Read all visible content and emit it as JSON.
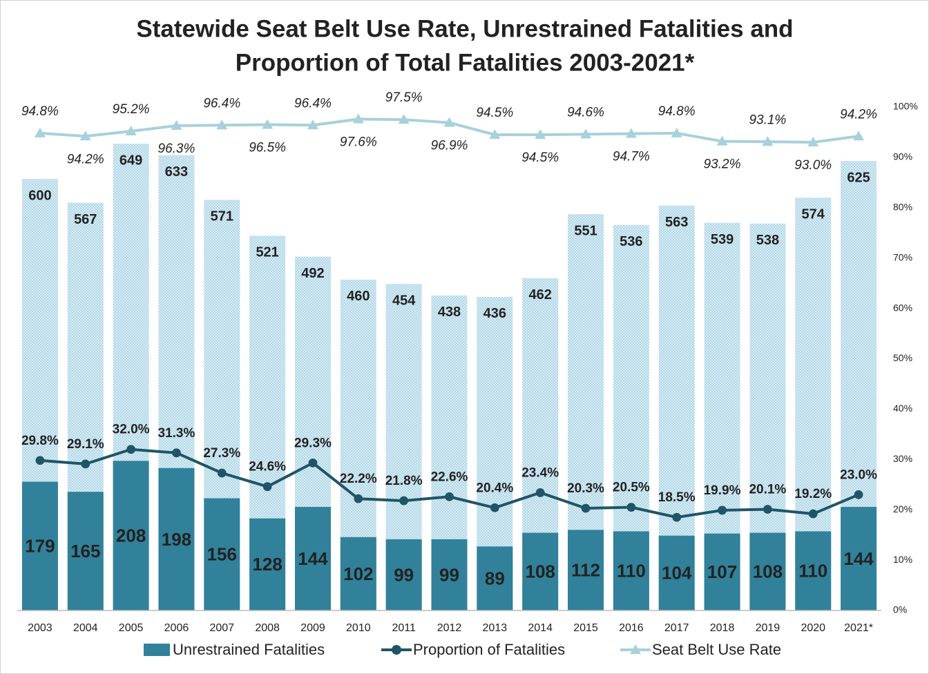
{
  "chart_data": {
    "type": "bar",
    "title": [
      "Statewide Seat Belt Use Rate, Unrestrained Fatalities and",
      "Proportion of Total Fatalities 2003-2021*"
    ],
    "categories": [
      "2003",
      "2004",
      "2005",
      "2006",
      "2007",
      "2008",
      "2009",
      "2010",
      "2011",
      "2012",
      "2013",
      "2014",
      "2015",
      "2016",
      "2017",
      "2018",
      "2019",
      "2020",
      "2021*"
    ],
    "ylim": [
      0,
      700
    ],
    "y2lim": [
      0,
      100
    ],
    "y2ticks": [
      {
        "value": 0,
        "label": "0%"
      },
      {
        "value": 10,
        "label": "10%"
      },
      {
        "value": 20,
        "label": "20%"
      },
      {
        "value": 30,
        "label": "30%"
      },
      {
        "value": 40,
        "label": "40%"
      },
      {
        "value": 50,
        "label": "50%"
      },
      {
        "value": 60,
        "label": "60%"
      },
      {
        "value": 70,
        "label": "70%"
      },
      {
        "value": 80,
        "label": "80%"
      },
      {
        "value": 90,
        "label": "90%"
      },
      {
        "value": 100,
        "label": "100%"
      }
    ],
    "grid": false,
    "legend": "bottom",
    "series": [
      {
        "type": "bar",
        "color": "#c9e4ef",
        "values": [
          600,
          567,
          649,
          633,
          571,
          521,
          492,
          460,
          454,
          438,
          436,
          462,
          551,
          536,
          563,
          539,
          538,
          574,
          625
        ]
      },
      {
        "type": "bar",
        "name": "Unrestrained Fatalities",
        "color": "#31819a",
        "values": [
          179,
          165,
          208,
          198,
          156,
          128,
          144,
          102,
          99,
          99,
          89,
          108,
          112,
          110,
          104,
          107,
          108,
          110,
          144
        ]
      },
      {
        "type": "line",
        "axis": "y2",
        "marker": "circle",
        "name": "Proportion of Fatalities",
        "color": "#1f5566",
        "values": [
          29.8,
          29.1,
          32.0,
          31.3,
          27.3,
          24.6,
          29.3,
          22.2,
          21.8,
          22.6,
          20.4,
          23.4,
          20.3,
          20.5,
          18.5,
          19.9,
          20.1,
          19.2,
          23.0
        ],
        "value_labels": [
          "29.8%",
          "29.1%",
          "32.0%",
          "31.3%",
          "27.3%",
          "24.6%",
          "29.3%",
          "22.2%",
          "21.8%",
          "22.6%",
          "20.4%",
          "23.4%",
          "20.3%",
          "20.5%",
          "18.5%",
          "19.9%",
          "20.1%",
          "19.2%",
          "23.0%"
        ]
      },
      {
        "type": "line",
        "axis": "y2",
        "marker": "triangle",
        "name": "Seat Belt Use Rate",
        "color": "#a8d0dd",
        "values": [
          94.8,
          94.2,
          95.2,
          96.3,
          96.4,
          96.5,
          96.4,
          97.6,
          97.5,
          96.9,
          94.5,
          94.5,
          94.6,
          94.7,
          94.8,
          93.2,
          93.1,
          93.0,
          94.2
        ],
        "value_labels": [
          "94.8%",
          "94.2%",
          "95.2%",
          "96.3%",
          "96.4%",
          "96.5%",
          "96.4%",
          "97.6%",
          "97.5%",
          "96.9%",
          "94.5%",
          "94.5%",
          "94.6%",
          "94.7%",
          "94.8%",
          "93.2%",
          "93.1%",
          "93.0%",
          "94.2%"
        ]
      }
    ]
  }
}
